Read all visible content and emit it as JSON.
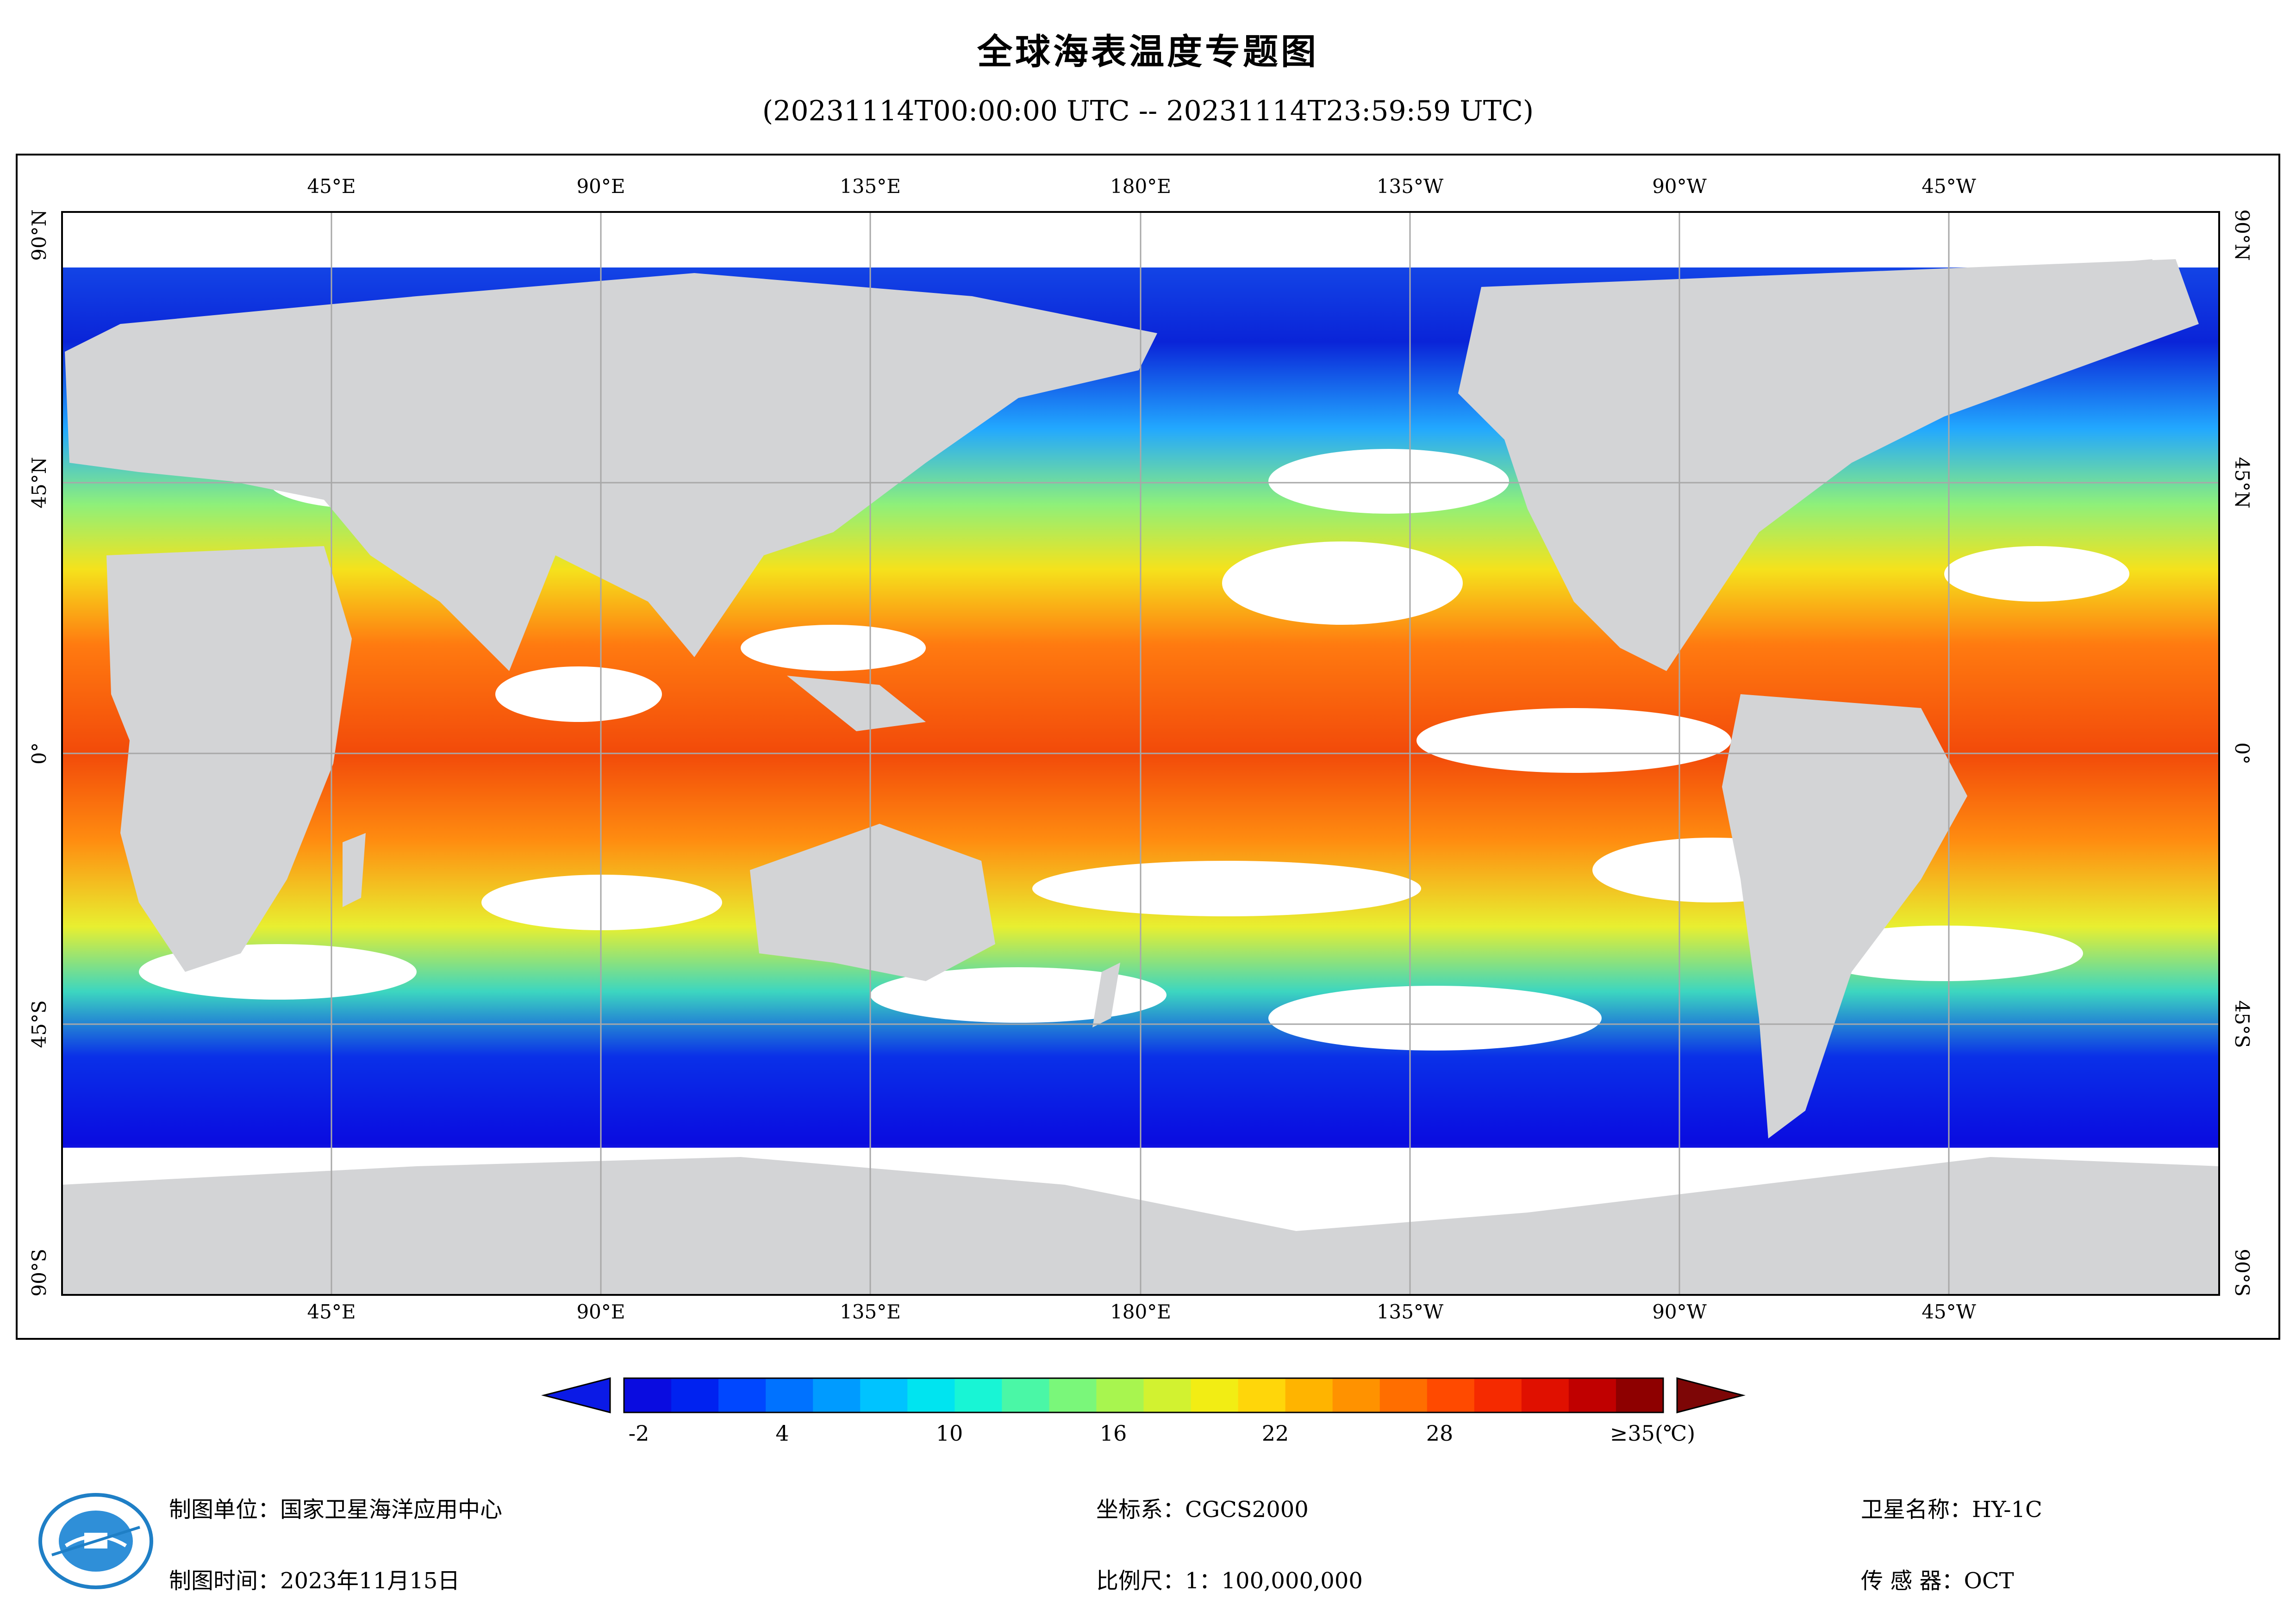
{
  "title": "全球海表温度专题图",
  "subtitle": "(20231114T00:00:00 UTC -- 20231114T23:59:59 UTC)",
  "map": {
    "lon_labels": [
      "45°E",
      "90°E",
      "135°E",
      "180°E",
      "135°W",
      "90°W",
      "45°W"
    ],
    "lat_labels": [
      "90°N",
      "45°N",
      "0°",
      "45°S",
      "90°S"
    ],
    "ocean_color": "#ff9a1f",
    "land_color": "#d3d4d6",
    "cloud_color": "#ffffff"
  },
  "colorbar": {
    "labels": [
      "-2",
      "4",
      "10",
      "16",
      "22",
      "28",
      "≥35(℃)"
    ],
    "left_arrow_color": "#0b1ae6",
    "right_arrow_color": "#7d0606",
    "colors": [
      "#0a0ce0",
      "#0022f0",
      "#0047ff",
      "#0072ff",
      "#009bff",
      "#00c3ff",
      "#00e4f0",
      "#18f5d5",
      "#4af7a6",
      "#7af77a",
      "#a8f54f",
      "#d2f230",
      "#f2ed14",
      "#ffd60a",
      "#ffb400",
      "#ff9200",
      "#ff6e00",
      "#ff4a00",
      "#f52a00",
      "#e01000",
      "#c00000",
      "#8e0000"
    ]
  },
  "footer": {
    "unit": "制图单位：国家卫星海洋应用中心",
    "time": "制图时间：2023年11月15日",
    "crs": "坐标系：CGCS2000",
    "scale": "比例尺：1：100,000,000",
    "satellite": "卫星名称：HY-1C",
    "sensor": "传 感 器：OCT"
  }
}
